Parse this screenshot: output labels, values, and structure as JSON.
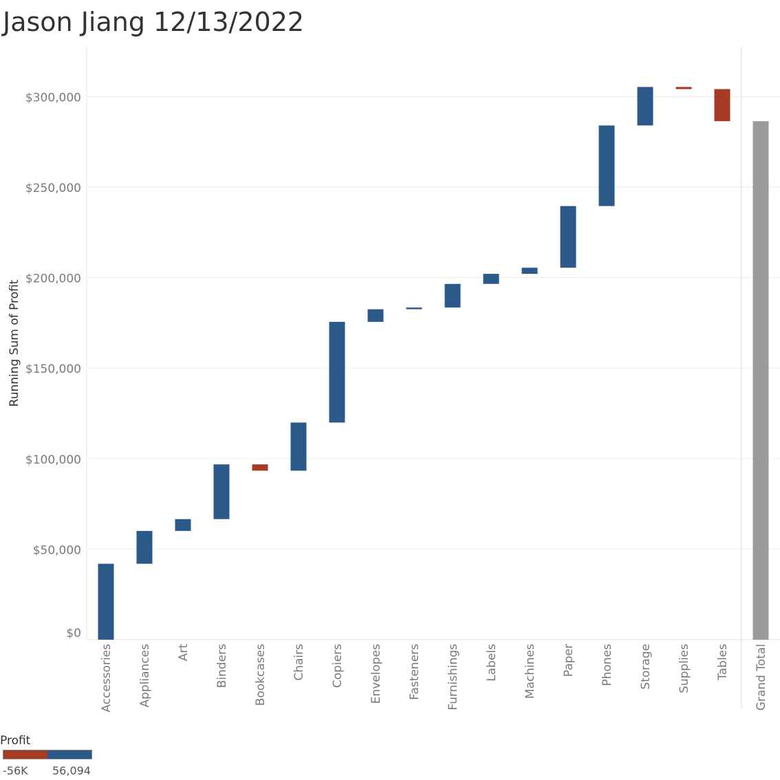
{
  "title": "Jason Jiang 12/13/2022",
  "chart_data": {
    "type": "waterfall",
    "ylabel": "Running Sum of Profit",
    "xlabel": "",
    "ylim": [
      0,
      320000
    ],
    "yticks": [
      {
        "value": 0,
        "label": "$0"
      },
      {
        "value": 50000,
        "label": "$50,000"
      },
      {
        "value": 100000,
        "label": "$100,000"
      },
      {
        "value": 150000,
        "label": "$150,000"
      },
      {
        "value": 200000,
        "label": "$200,000"
      },
      {
        "value": 250000,
        "label": "$250,000"
      },
      {
        "value": 300000,
        "label": "$300,000"
      }
    ],
    "grid": true,
    "categories": [
      "Accessories",
      "Appliances",
      "Art",
      "Binders",
      "Bookcases",
      "Chairs",
      "Copiers",
      "Envelopes",
      "Fasteners",
      "Furnishings",
      "Labels",
      "Machines",
      "Paper",
      "Phones",
      "Storage",
      "Supplies",
      "Tables",
      "Grand Total"
    ],
    "values": [
      41937,
      18138,
      6528,
      30222,
      -3473,
      26590,
      55618,
      6964,
      950,
      13059,
      5546,
      3385,
      34054,
      44516,
      21279,
      -1189,
      -17725,
      286397
    ],
    "positive_color": "#2b5a8a",
    "negative_color": "#a63a22",
    "total_color": "#9b9b9b"
  },
  "legend": {
    "title": "Profit",
    "min_label": "-56K",
    "max_label": "56,094"
  }
}
